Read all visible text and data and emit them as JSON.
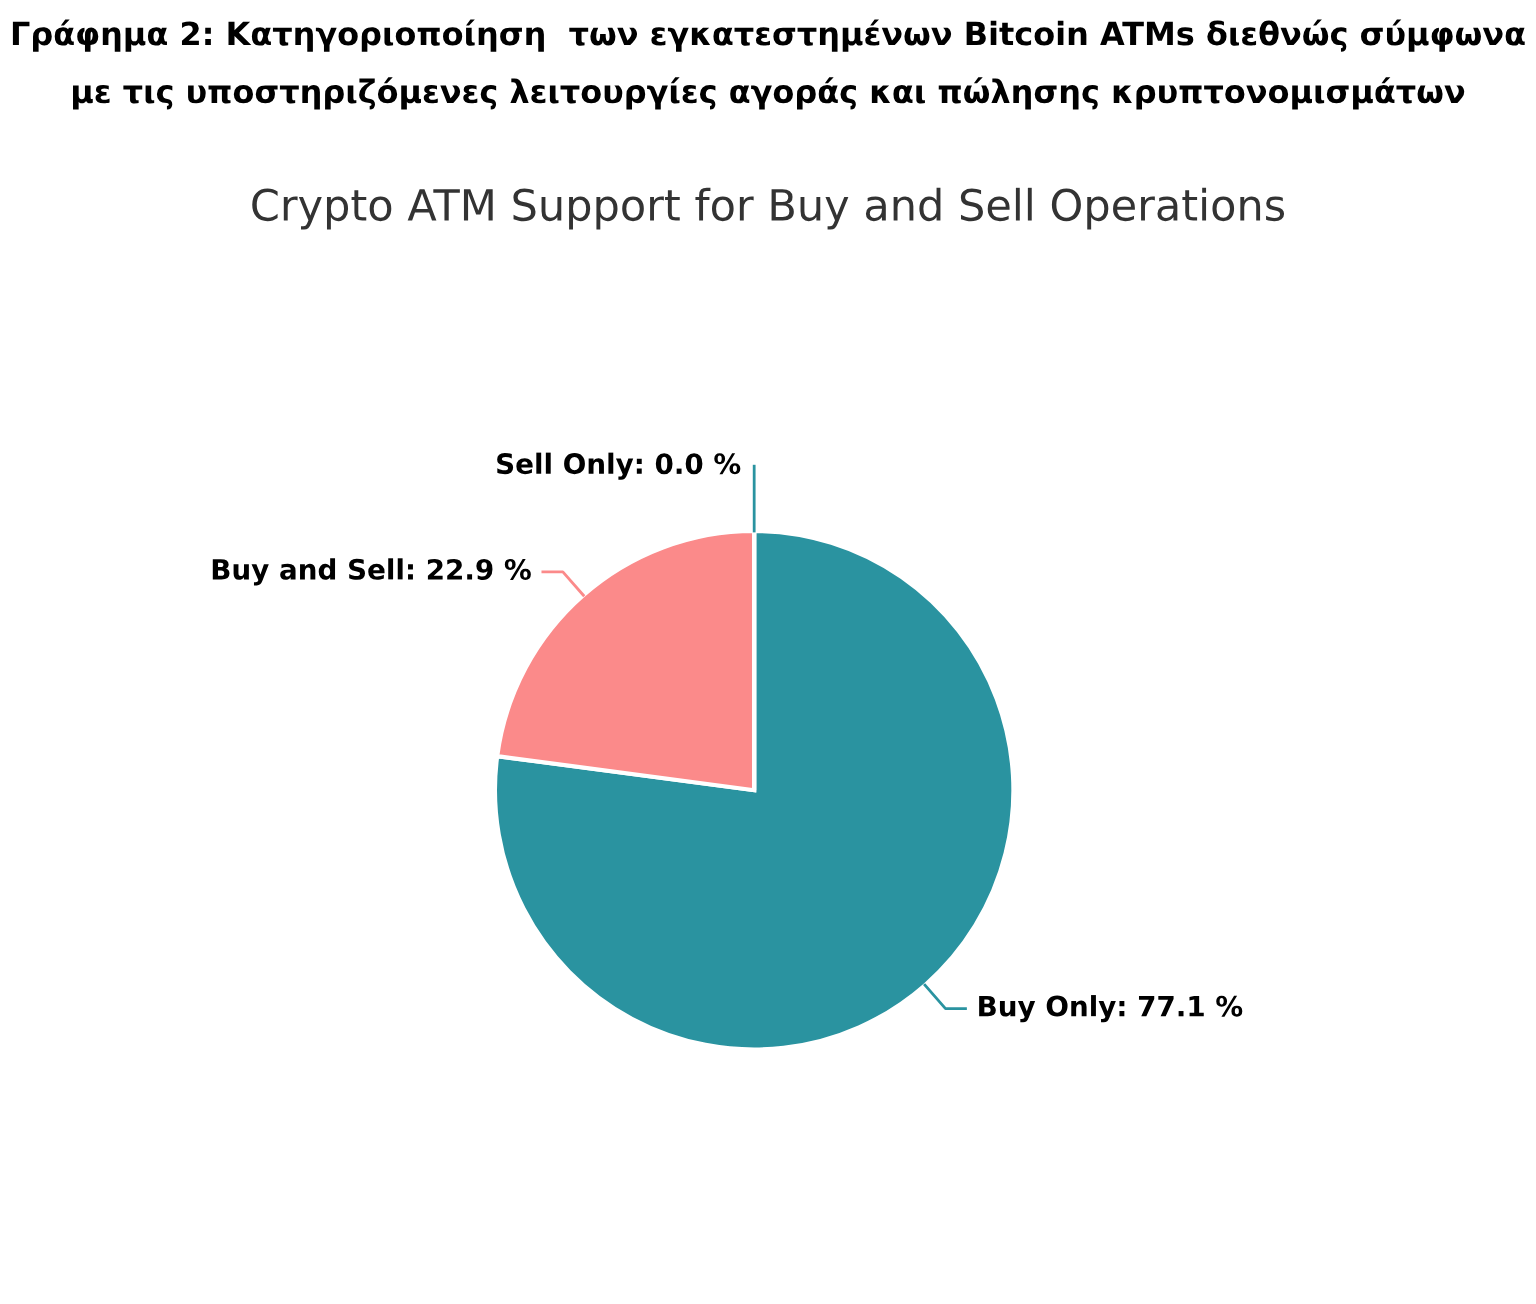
{
  "chart_data": {
    "type": "pie",
    "title": "Γράφημα 2: Κατηγοριοποίηση  των εγκατεστημένων Bitcoin ATMs διεθνώς σύμφωνα με τις υποστηριζόμενες λειτουργίες αγοράς και πώλησης κρυπτονομισμάτων",
    "subtitle": "Crypto ATM Support for Buy and Sell Operations",
    "categories": [
      "Buy Only",
      "Buy and Sell",
      "Sell Only"
    ],
    "values": [
      77.1,
      22.9,
      0.0
    ],
    "value_labels": [
      ": 77.1 %",
      ": 22.9 %",
      ": 0.0 %"
    ],
    "colors": [
      "#2a93a0",
      "#fb8a8a",
      "#2a93a0"
    ],
    "legend": false
  }
}
